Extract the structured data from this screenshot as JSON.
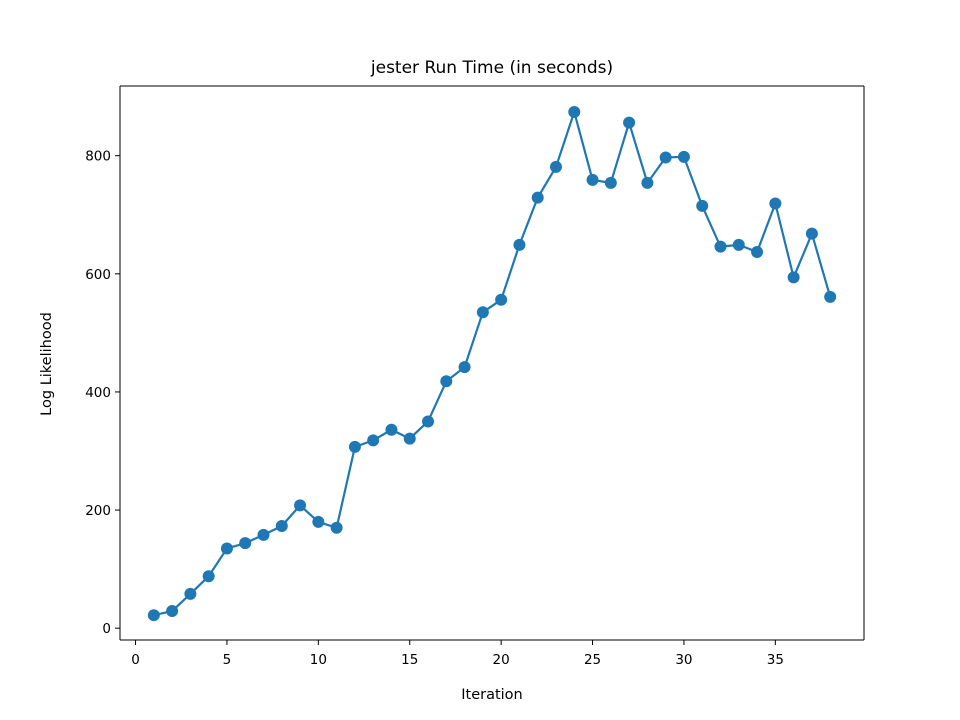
{
  "chart_data": {
    "type": "line",
    "title": "jester Run Time (in seconds)",
    "xlabel": "Iteration",
    "ylabel": "Log Likelihood",
    "xlim": [
      -0.85,
      39.85
    ],
    "ylim": [
      -20,
      918
    ],
    "xticks": [
      0,
      5,
      10,
      15,
      20,
      25,
      30,
      35
    ],
    "yticks": [
      0,
      200,
      400,
      600,
      800
    ],
    "grid": false,
    "line_color": "#1f77b4",
    "markers": true,
    "series": [
      {
        "x": [
          1,
          2,
          3,
          4,
          5,
          6,
          7,
          8,
          9,
          10,
          11,
          12,
          13,
          14,
          15,
          16,
          17,
          18,
          19,
          20,
          21,
          22,
          23,
          24,
          25,
          26,
          27,
          28,
          29,
          30,
          31,
          32,
          33,
          34,
          35,
          36,
          37,
          38
        ],
        "values": [
          22,
          29,
          58,
          88,
          135,
          144,
          158,
          173,
          208,
          180,
          170,
          307,
          318,
          336,
          321,
          350,
          418,
          442,
          535,
          556,
          649,
          729,
          781,
          874,
          759,
          754,
          856,
          754,
          797,
          798,
          715,
          646,
          649,
          637,
          719,
          594,
          668,
          561
        ]
      }
    ]
  }
}
